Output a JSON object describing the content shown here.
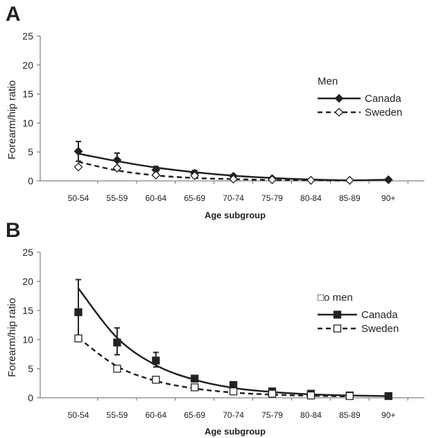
{
  "chart_data": [
    {
      "type": "line",
      "panel_label": "A",
      "xlabel": "Age subgroup",
      "ylabel": "Forearm/hip ratio",
      "ylim": [
        0,
        25
      ],
      "yticks": [
        "0",
        "5",
        "10",
        "15",
        "20",
        "25"
      ],
      "categories": [
        "50-54",
        "55-59",
        "60-64",
        "65-69",
        "70-74",
        "75-79",
        "80-84",
        "85-89",
        "90+"
      ],
      "legend": {
        "title": "Men",
        "position": "right"
      },
      "series": [
        {
          "name": "Canada",
          "marker": "filled-diamond",
          "line": "solid",
          "values": [
            5.1,
            3.6,
            1.9,
            1.3,
            0.8,
            0.4,
            0.1,
            0.1,
            0.2
          ],
          "error_upper": [
            6.8,
            4.8,
            2.5,
            1.8,
            1.1,
            0.6,
            0.2,
            0.1,
            0.3
          ],
          "error_lower": [
            3.4,
            2.5,
            1.3,
            0.8,
            0.5,
            0.2,
            0.0,
            0.0,
            0.1
          ],
          "fit": [
            4.7,
            3.4,
            2.3,
            1.5,
            0.9,
            0.5,
            0.25,
            0.1,
            0.2
          ]
        },
        {
          "name": "Sweden",
          "marker": "open-diamond",
          "line": "dashed",
          "values": [
            2.4,
            2.2,
            1.0,
            0.9,
            0.3,
            0.2,
            0.1,
            0.1,
            null
          ],
          "fit": [
            3.3,
            1.8,
            0.95,
            0.5,
            0.3,
            0.15,
            0.1,
            0.05,
            null
          ]
        }
      ]
    },
    {
      "type": "line",
      "panel_label": "B",
      "xlabel": "Age subgroup",
      "ylabel": "Forearm/hip ratio",
      "ylim": [
        0,
        25
      ],
      "yticks": [
        "0",
        "5",
        "10",
        "15",
        "20",
        "25"
      ],
      "categories": [
        "50-54",
        "55-59",
        "60-64",
        "65-69",
        "70-74",
        "75-79",
        "80-84",
        "85-89",
        "90+"
      ],
      "legend": {
        "title": "□o men",
        "position": "right"
      },
      "series": [
        {
          "name": "Canada",
          "marker": "filled-square",
          "line": "solid",
          "values": [
            14.7,
            9.5,
            6.4,
            3.3,
            2.2,
            1.1,
            0.7,
            0.4,
            0.3
          ],
          "error_upper": [
            20.3,
            12.0,
            7.8,
            3.7,
            2.5,
            1.3,
            0.9,
            0.5,
            0.4
          ],
          "error_lower": [
            10.0,
            7.4,
            5.3,
            2.9,
            1.9,
            0.9,
            0.5,
            0.3,
            0.2
          ],
          "fit": [
            18.8,
            10.3,
            5.6,
            3.1,
            1.7,
            1.0,
            0.6,
            0.4,
            0.3
          ]
        },
        {
          "name": "Sweden",
          "marker": "open-square",
          "line": "dashed",
          "values": [
            10.2,
            5.0,
            3.1,
            1.8,
            1.1,
            0.7,
            0.4,
            0.3,
            null
          ],
          "fit": [
            10.3,
            5.4,
            2.9,
            1.6,
            0.9,
            0.55,
            0.35,
            0.25,
            null
          ]
        }
      ]
    }
  ]
}
